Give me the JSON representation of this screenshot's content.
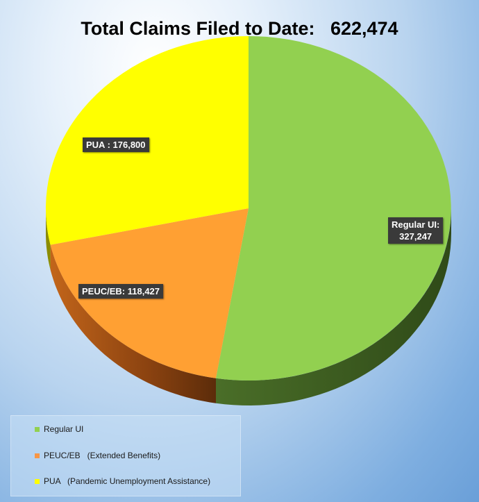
{
  "chart_data": {
    "type": "pie",
    "title": "Total Claims Filed to Date:   622,474",
    "categories": [
      "Regular UI",
      "PEUC/EB",
      "PUA"
    ],
    "values": [
      327247,
      118427,
      176800
    ],
    "colors": [
      "#92d050",
      "#ffa033",
      "#ffff00"
    ],
    "data_labels": [
      {
        "line1": "Regular UI:",
        "line2": "327,247"
      },
      {
        "line1": "PEUC/EB: 118,427",
        "line2": ""
      },
      {
        "line1": "PUA : 176,800",
        "line2": ""
      }
    ],
    "legend": {
      "position": "bottom-left",
      "items": [
        {
          "label": "Regular UI",
          "color": "#92d050"
        },
        {
          "label": "PEUC/EB   (Extended Benefits)",
          "color": "#f79646"
        },
        {
          "label": "PUA   (Pandemic Unemployment Assistance)",
          "color": "#ffff00"
        }
      ]
    }
  }
}
